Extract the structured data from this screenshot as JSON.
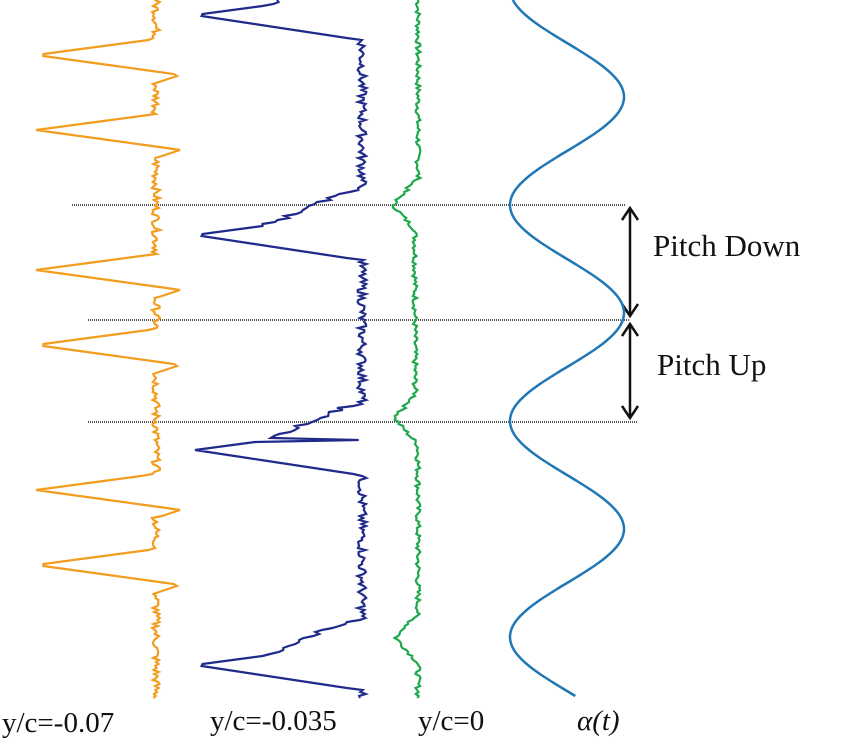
{
  "annotations": {
    "pitch_down": "Pitch Down",
    "pitch_up": "Pitch Up"
  },
  "labels": [
    "y/c=-0.07",
    "y/c=-0.035",
    "y/c=0",
    "α(t)"
  ]
}
